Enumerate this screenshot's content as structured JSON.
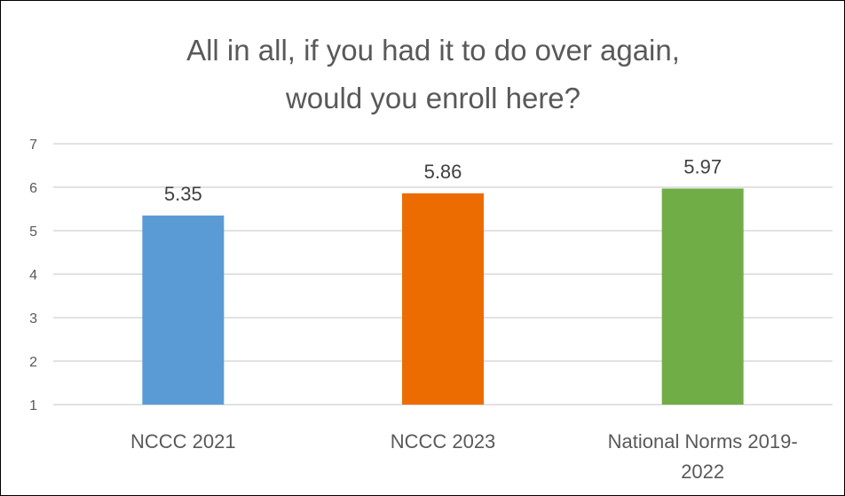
{
  "chart_data": {
    "type": "bar",
    "title_lines": [
      "All in all, if you had it to do over again,",
      "would you enroll here?"
    ],
    "categories": [
      "NCCC 2021",
      "NCCC 2023",
      "National Norms 2019-2022"
    ],
    "category_label_lines": [
      [
        "NCCC 2021"
      ],
      [
        "NCCC 2023"
      ],
      [
        "National Norms 2019-",
        "2022"
      ]
    ],
    "values": [
      5.35,
      5.86,
      5.97
    ],
    "data_labels": [
      "5.35",
      "5.86",
      "5.97"
    ],
    "colors": [
      "#5b9bd5",
      "#ed6c02",
      "#70ad47"
    ],
    "ylim": [
      1,
      7
    ],
    "yticks": [
      "1",
      "2",
      "3",
      "4",
      "5",
      "6",
      "7"
    ],
    "grid": true,
    "legend": "none",
    "xlabel": "",
    "ylabel": ""
  }
}
